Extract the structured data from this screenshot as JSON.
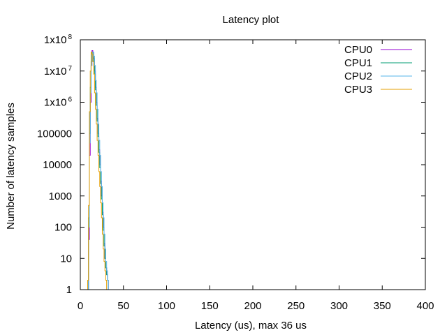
{
  "chart_data": {
    "type": "line",
    "title": "Latency plot",
    "xlabel": "Latency (us), max 36 us",
    "ylabel": "Number of latency samples",
    "xlim": [
      0,
      400
    ],
    "ylim": [
      1,
      100000000
    ],
    "yscale": "log",
    "grid": false,
    "legend_position": "top-right",
    "x_ticks": [
      0,
      50,
      100,
      150,
      200,
      250,
      300,
      350,
      400
    ],
    "y_ticks": [
      {
        "value": 1,
        "label": "1"
      },
      {
        "value": 10,
        "label": "10"
      },
      {
        "value": 100,
        "label": "100"
      },
      {
        "value": 1000,
        "label": "1000"
      },
      {
        "value": 10000,
        "label": "10000"
      },
      {
        "value": 100000,
        "label": "100000"
      },
      {
        "value": 1000000,
        "label": "1x10",
        "exp": "6"
      },
      {
        "value": 10000000,
        "label": "1x10",
        "exp": "7"
      },
      {
        "value": 100000000,
        "label": "1x10",
        "exp": "8"
      }
    ],
    "series": [
      {
        "name": "CPU0",
        "color": "#9400d3",
        "x": [
          9,
          10,
          11,
          12,
          13,
          14,
          15,
          16,
          17,
          18,
          19,
          20,
          21,
          22,
          23,
          24,
          25,
          26,
          27,
          28,
          29,
          30,
          31,
          32,
          33,
          34
        ],
        "y": [
          1,
          40,
          20000,
          1000000,
          15000000,
          45000000,
          40000000,
          25000000,
          10000000,
          3000000,
          1000000,
          300000,
          100000,
          30000,
          10000,
          3000,
          1000,
          300,
          100,
          30,
          10,
          5,
          3,
          2,
          1,
          1
        ]
      },
      {
        "name": "CPU1",
        "color": "#009e73",
        "x": [
          9,
          10,
          11,
          12,
          13,
          14,
          15,
          16,
          17,
          18,
          19,
          20,
          21,
          22,
          23,
          24,
          25,
          26,
          27,
          28,
          29,
          30,
          31,
          32,
          33,
          34,
          35
        ],
        "y": [
          1,
          200,
          100000,
          3000000,
          20000000,
          40000000,
          35000000,
          20000000,
          8000000,
          2500000,
          800000,
          250000,
          80000,
          25000,
          8000,
          2500,
          800,
          250,
          80,
          25,
          10,
          5,
          3,
          2,
          1,
          1,
          1
        ]
      },
      {
        "name": "CPU2",
        "color": "#56b4e9",
        "x": [
          9,
          10,
          11,
          12,
          13,
          14,
          15,
          16,
          17,
          18,
          19,
          20,
          21,
          22,
          23,
          24,
          25,
          26,
          27,
          28,
          29,
          30,
          31,
          32,
          33,
          34,
          35,
          36
        ],
        "y": [
          1,
          100,
          50000,
          2000000,
          15000000,
          35000000,
          40000000,
          30000000,
          15000000,
          5000000,
          2000000,
          600000,
          200000,
          60000,
          20000,
          6000,
          2000,
          600,
          200,
          60,
          20,
          8,
          4,
          2,
          1,
          1,
          1,
          1
        ]
      },
      {
        "name": "CPU3",
        "color": "#e69f00",
        "x": [
          8,
          9,
          10,
          11,
          12,
          13,
          14,
          15,
          16,
          17,
          18,
          19,
          20,
          21,
          22,
          23,
          24,
          25,
          26,
          27,
          28,
          29,
          30,
          31,
          32,
          33
        ],
        "y": [
          1,
          2,
          500,
          500000,
          10000000,
          40000000,
          35000000,
          20000000,
          8000000,
          2000000,
          600000,
          200000,
          60000,
          20000,
          6000,
          2000,
          600,
          200,
          60,
          20,
          8,
          4,
          2,
          1,
          1,
          1
        ]
      }
    ]
  }
}
